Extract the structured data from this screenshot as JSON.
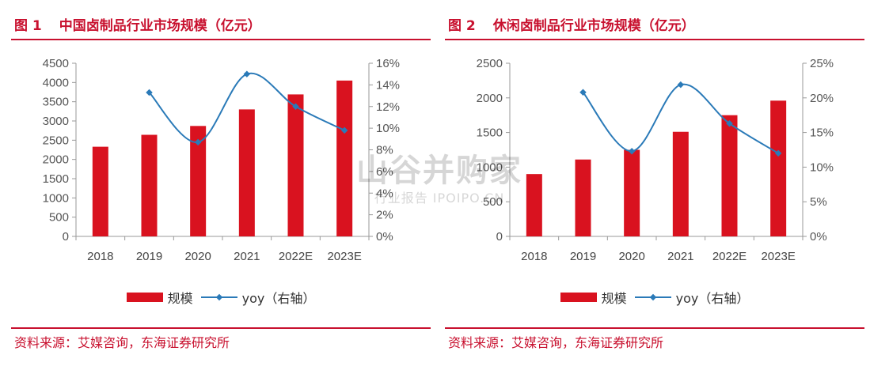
{
  "figures": [
    {
      "number": "图 1",
      "title": "中国卤制品行业市场规模（亿元）",
      "source": "资料来源：艾媒咨询，东海证券研究所",
      "legend": {
        "bar_label": "规模",
        "line_label": "yoy（右轴）"
      },
      "colors": {
        "bar": "#d9121f",
        "line": "#2a7ab8"
      }
    },
    {
      "number": "图 2",
      "title": "休闲卤制品行业市场规模（亿元）",
      "source": "资料来源：艾媒咨询，东海证券研究所",
      "legend": {
        "bar_label": "规模",
        "line_label": "yoy（右轴）"
      },
      "colors": {
        "bar": "#d9121f",
        "line": "#2a7ab8"
      }
    }
  ],
  "watermark": {
    "text_main": "山谷并购家",
    "text_sub": "行业报告 IPOIPO.CN"
  },
  "chart_data": [
    {
      "type": "bar",
      "categories": [
        "2018",
        "2019",
        "2020",
        "2021",
        "2022E",
        "2023E"
      ],
      "series": [
        {
          "name": "规模",
          "type": "bar",
          "axis": "left",
          "values": [
            2330,
            2640,
            2870,
            3300,
            3690,
            4050
          ]
        },
        {
          "name": "yoy（右轴）",
          "type": "line",
          "axis": "right",
          "values": [
            null,
            13.3,
            8.7,
            15.0,
            12.0,
            9.8
          ]
        }
      ],
      "y_left": {
        "min": 0,
        "max": 4500,
        "step": 500,
        "ticks": [
          "0",
          "500",
          "1000",
          "1500",
          "2000",
          "2500",
          "3000",
          "3500",
          "4000",
          "4500"
        ]
      },
      "y_right": {
        "min": 0,
        "max": 16,
        "step": 2,
        "ticks": [
          "0%",
          "2%",
          "4%",
          "6%",
          "8%",
          "10%",
          "12%",
          "14%",
          "16%"
        ]
      },
      "legend_position": "bottom",
      "grid": false
    },
    {
      "type": "bar",
      "categories": [
        "2018",
        "2019",
        "2020",
        "2021",
        "2022E",
        "2023E"
      ],
      "series": [
        {
          "name": "规模",
          "type": "bar",
          "axis": "left",
          "values": [
            900,
            1110,
            1250,
            1510,
            1750,
            1960
          ]
        },
        {
          "name": "yoy（右轴）",
          "type": "line",
          "axis": "right",
          "values": [
            null,
            20.8,
            12.3,
            21.9,
            16.3,
            12.0
          ]
        }
      ],
      "y_left": {
        "min": 0,
        "max": 2500,
        "step": 500,
        "ticks": [
          "0",
          "500",
          "1000",
          "1500",
          "2000",
          "2500"
        ]
      },
      "y_right": {
        "min": 0,
        "max": 25,
        "step": 5,
        "ticks": [
          "0%",
          "5%",
          "10%",
          "15%",
          "20%",
          "25%"
        ]
      },
      "legend_position": "bottom",
      "grid": false
    }
  ]
}
